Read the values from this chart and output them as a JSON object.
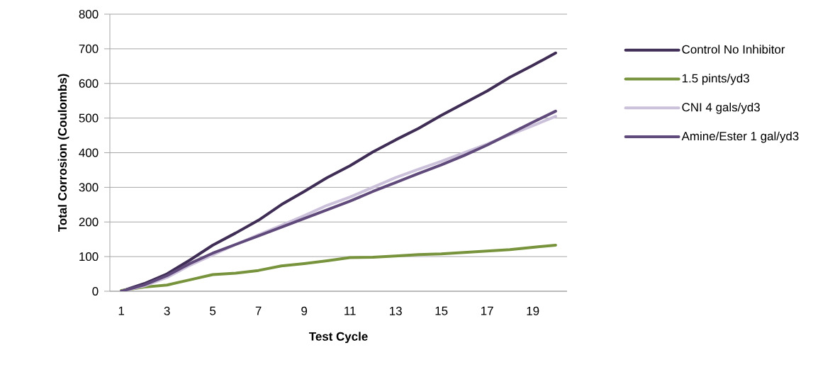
{
  "chart_data": {
    "type": "line",
    "xlabel": "Test Cycle",
    "ylabel": "Total Corrosion  (Coulombs)",
    "x": [
      1,
      2,
      3,
      4,
      5,
      6,
      7,
      8,
      9,
      10,
      11,
      12,
      13,
      14,
      15,
      16,
      17,
      18,
      19,
      20
    ],
    "xlim": [
      0.5,
      20.5
    ],
    "xticks": [
      1,
      3,
      5,
      7,
      9,
      11,
      13,
      15,
      17,
      19
    ],
    "ylim": [
      0,
      800
    ],
    "yticks": [
      0,
      100,
      200,
      300,
      400,
      500,
      600,
      700,
      800
    ],
    "grid": "y",
    "legend": "right",
    "marker": "none",
    "line_style": "solid",
    "series": [
      {
        "name": "Control No Inhibitor",
        "color": "#3f2d56",
        "values": [
          0,
          22,
          50,
          90,
          133,
          168,
          205,
          250,
          288,
          328,
          362,
          402,
          437,
          470,
          508,
          543,
          578,
          618,
          652,
          688
        ]
      },
      {
        "name": "1.5 pints/yd3",
        "color": "#77933c",
        "values": [
          2,
          12,
          18,
          33,
          48,
          52,
          60,
          73,
          80,
          88,
          97,
          98,
          102,
          106,
          108,
          112,
          116,
          120,
          127,
          133
        ]
      },
      {
        "name": "CNI 4 gals/yd3",
        "color": "#ccc1da",
        "values": [
          0,
          15,
          40,
          75,
          105,
          135,
          163,
          190,
          218,
          248,
          272,
          300,
          328,
          352,
          375,
          400,
          425,
          452,
          478,
          505
        ]
      },
      {
        "name": "Amine/Ester 1 gal/yd3",
        "color": "#604a7b",
        "values": [
          0,
          18,
          45,
          80,
          110,
          135,
          160,
          185,
          210,
          235,
          260,
          288,
          314,
          340,
          365,
          392,
          422,
          455,
          488,
          520
        ]
      }
    ]
  }
}
